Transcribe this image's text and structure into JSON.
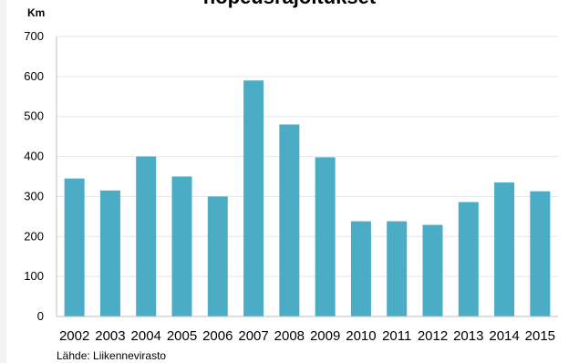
{
  "chart_data": {
    "type": "bar",
    "title": "nopeusrajoitukset",
    "ylabel": "Km",
    "xlabel": "",
    "categories": [
      "2002",
      "2003",
      "2004",
      "2005",
      "2006",
      "2007",
      "2008",
      "2009",
      "2010",
      "2011",
      "2012",
      "2013",
      "2014",
      "2015"
    ],
    "values": [
      345,
      315,
      400,
      350,
      300,
      590,
      480,
      398,
      238,
      238,
      229,
      286,
      335,
      313
    ],
    "ylim": [
      0,
      700
    ],
    "yticks": [
      0,
      100,
      200,
      300,
      400,
      500,
      600,
      700
    ],
    "grid": true,
    "legend": "none",
    "bar_color": "#4bacc6",
    "source": "Lähde: Liikennevirasto"
  }
}
